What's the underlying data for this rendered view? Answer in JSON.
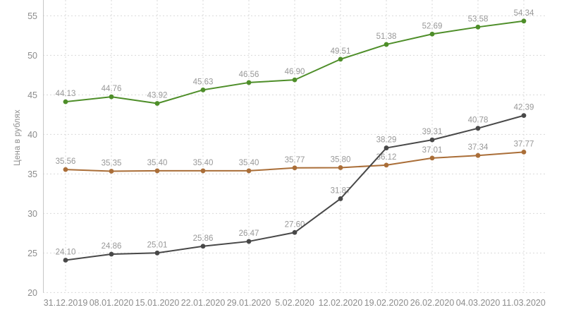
{
  "chart_data": {
    "type": "line",
    "ylabel": "Цена в рублях",
    "categories": [
      "31.12.2019",
      "08.01.2020",
      "15.01.2020",
      "22.01.2020",
      "29.01.2020",
      "5.02.2020",
      "12.02.2020",
      "19.02.2020",
      "26.02.2020",
      "04.03.2020",
      "11.03.2020"
    ],
    "series": [
      {
        "name": "green",
        "color": "#4e8e29",
        "values": [
          44.13,
          44.76,
          43.92,
          45.63,
          46.56,
          46.9,
          49.51,
          51.38,
          52.69,
          53.58,
          54.34
        ]
      },
      {
        "name": "orange",
        "color": "#aa6e38",
        "values": [
          35.56,
          35.35,
          35.4,
          35.4,
          35.4,
          35.77,
          35.8,
          36.12,
          37.01,
          37.34,
          37.77
        ]
      },
      {
        "name": "dark",
        "color": "#484848",
        "values": [
          24.1,
          24.86,
          25.01,
          25.86,
          26.47,
          27.6,
          31.87,
          38.29,
          39.31,
          40.78,
          42.39
        ]
      }
    ],
    "ylim": [
      20,
      55
    ],
    "yticks": [
      20,
      25,
      30,
      35,
      40,
      45,
      50,
      55
    ],
    "grid": "dashed",
    "legend_position": "none",
    "point_labels": true
  },
  "style": {
    "background": "#ffffff",
    "grid_color": "#d9d9d9",
    "axis_color": "#c6c6c6",
    "tick_label_color": "#8c8c8c",
    "data_label_color": "#989898"
  }
}
